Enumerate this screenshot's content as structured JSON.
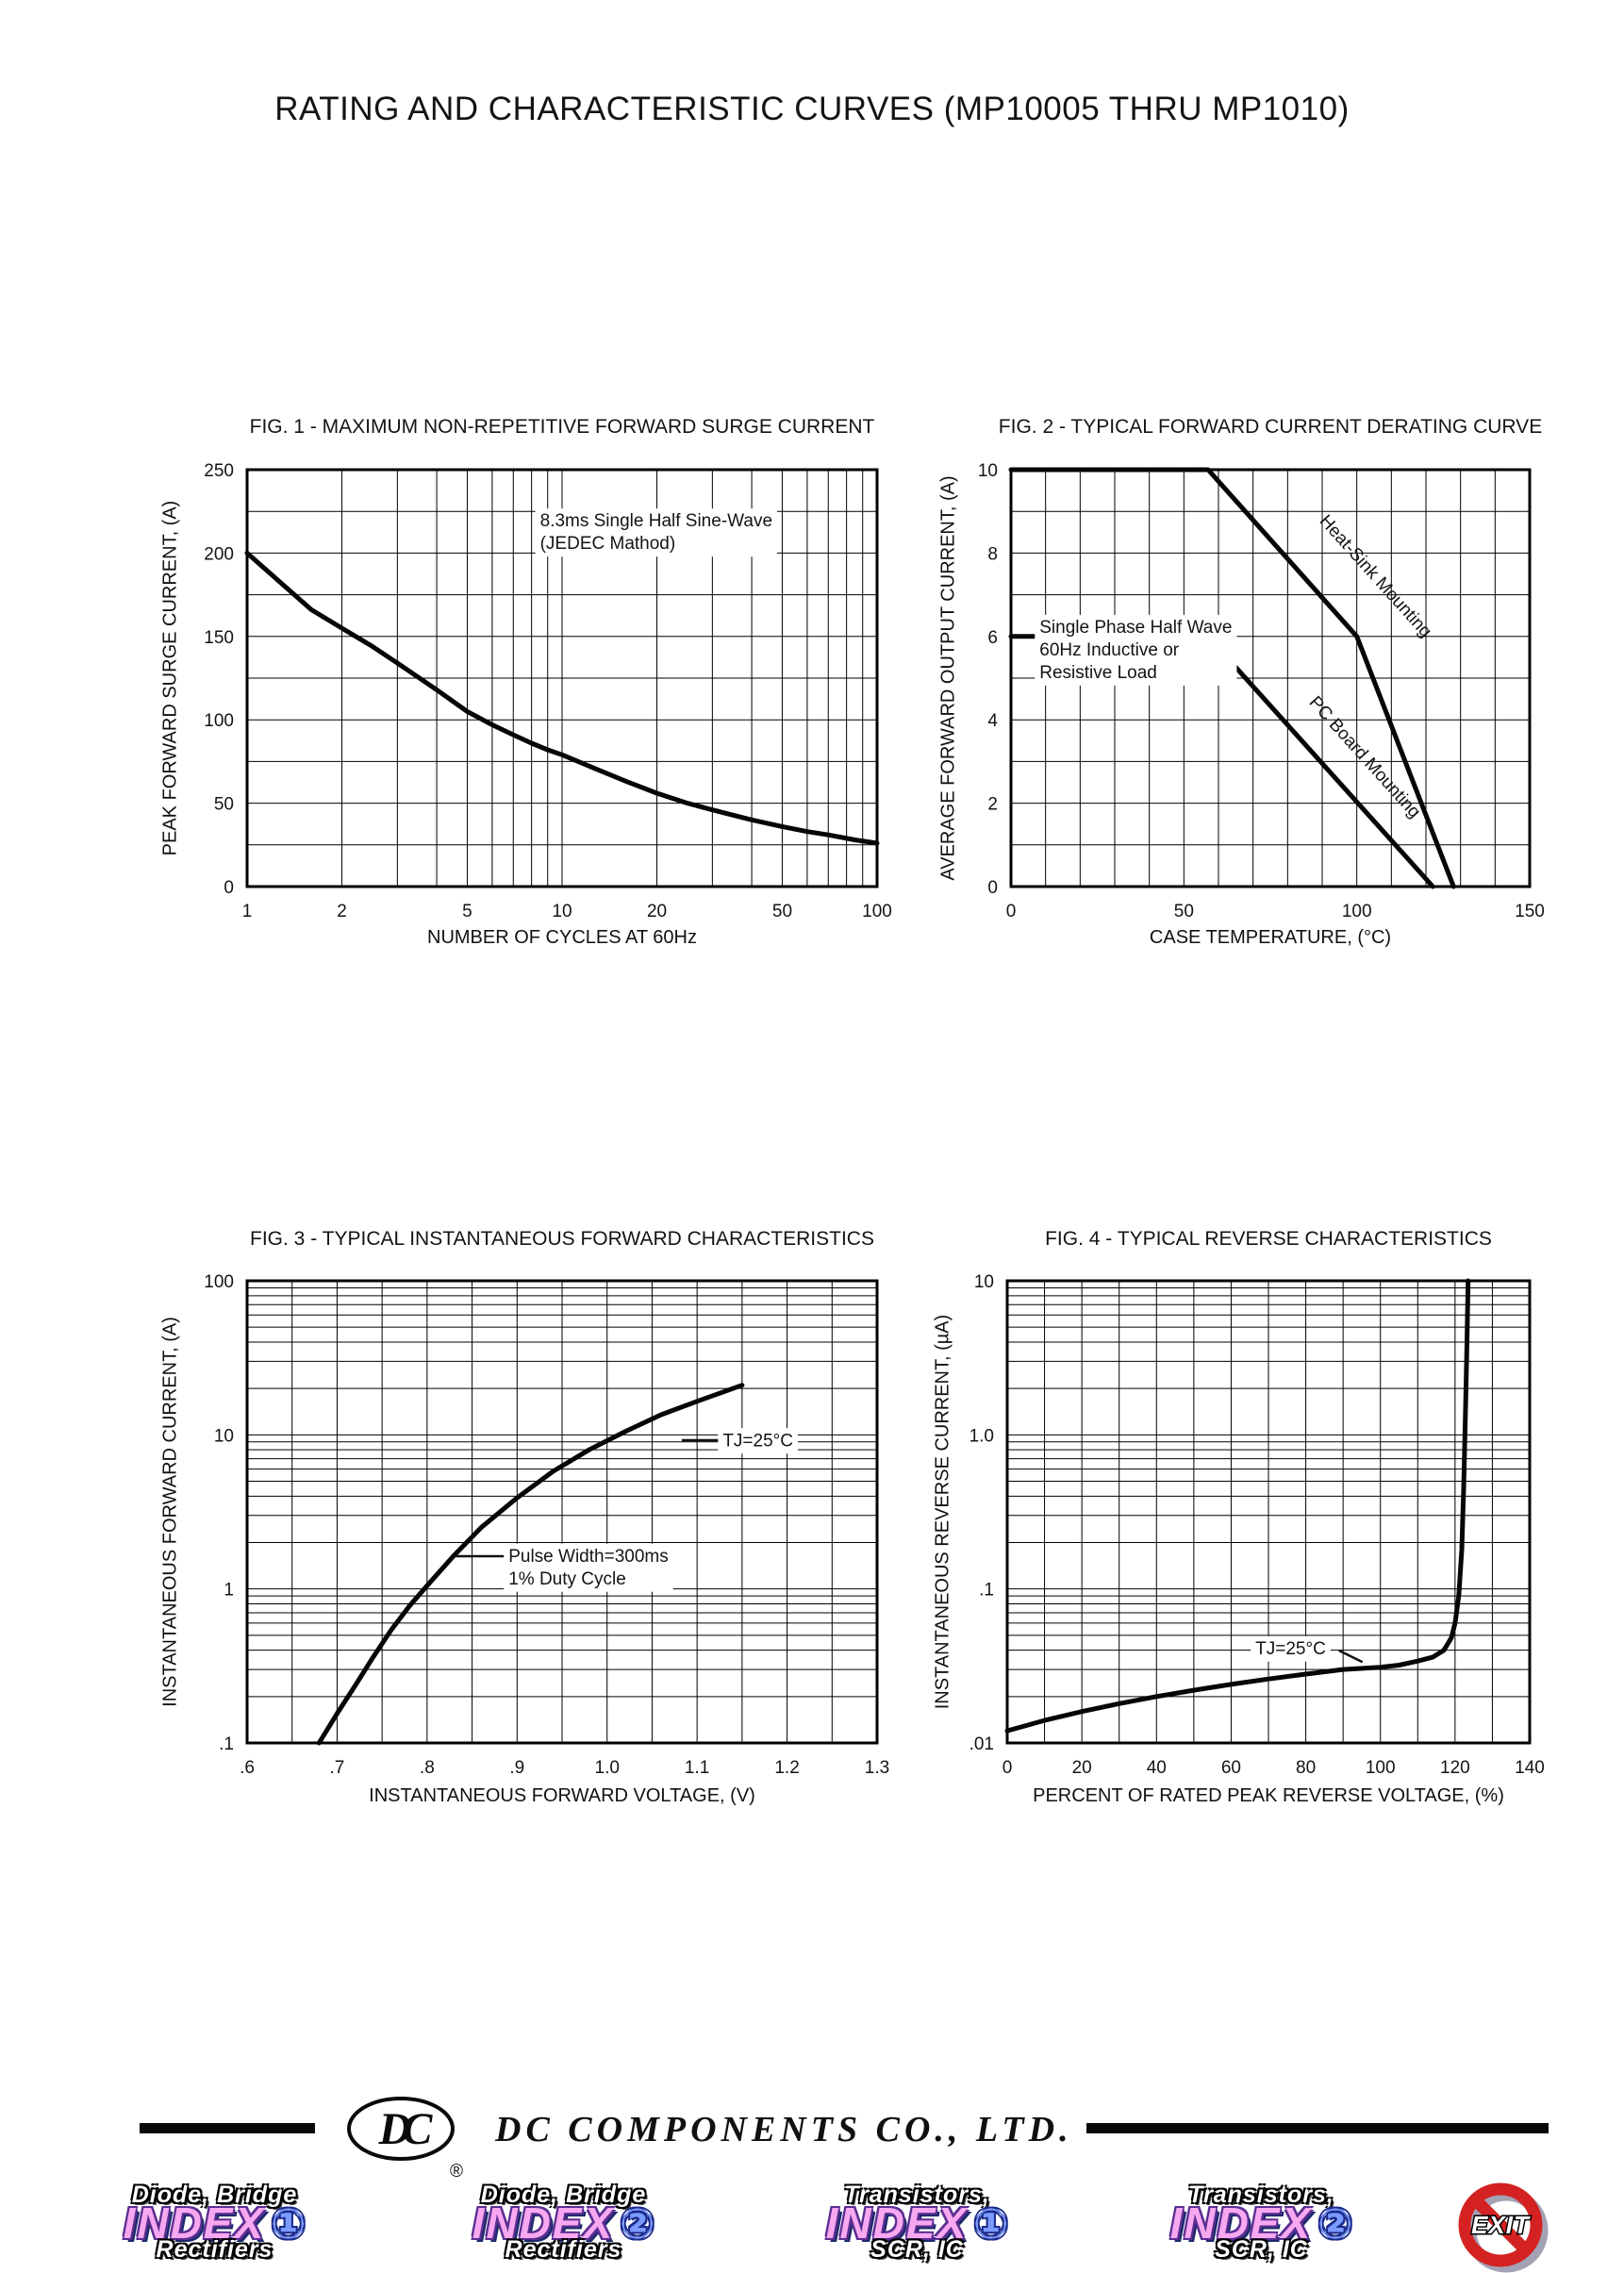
{
  "page": {
    "title": "RATING AND CHARACTERISTIC CURVES (MP10005 THRU MP1010)"
  },
  "chart_data": [
    {
      "id": "fig1",
      "type": "line",
      "title": "FIG. 1 - MAXIMUM NON-REPETITIVE FORWARD SURGE CURRENT",
      "xlabel": "NUMBER OF CYCLES AT 60Hz",
      "ylabel": "PEAK FORWARD SURGE CURRENT, (A)",
      "x": {
        "scale": "log",
        "min": 1,
        "max": 100,
        "tick_values": [
          1,
          2,
          5,
          10,
          20,
          50,
          100
        ],
        "tick_labels": [
          "1",
          "2",
          "5",
          "10",
          "20",
          "50",
          "100"
        ]
      },
      "y": {
        "scale": "linear",
        "min": 0,
        "max": 250,
        "grid_step": 25,
        "tick_values": [
          0,
          50,
          100,
          150,
          200,
          250
        ],
        "tick_labels": [
          "0",
          "50",
          "100",
          "150",
          "200",
          "250"
        ]
      },
      "series": [
        {
          "name": "surge-current",
          "points": [
            [
              1,
              200
            ],
            [
              1.3,
              181
            ],
            [
              1.6,
              166
            ],
            [
              2,
              155
            ],
            [
              2.5,
              144
            ],
            [
              3,
              134
            ],
            [
              4,
              118
            ],
            [
              5,
              105
            ],
            [
              6,
              97
            ],
            [
              7,
              91
            ],
            [
              8,
              86
            ],
            [
              9,
              82
            ],
            [
              10,
              79
            ],
            [
              13,
              70
            ],
            [
              16,
              63
            ],
            [
              20,
              56
            ],
            [
              25,
              50
            ],
            [
              30,
              46
            ],
            [
              40,
              40
            ],
            [
              50,
              36
            ],
            [
              60,
              33
            ],
            [
              70,
              31
            ],
            [
              85,
              28
            ],
            [
              100,
              26
            ]
          ]
        }
      ],
      "annotations": [
        {
          "lines": [
            "8.3ms Single Half Sine-Wave",
            "(JEDEC Mathod)"
          ],
          "fx": 0.465,
          "fy": 0.1,
          "anchor": "start",
          "bg": true
        }
      ]
    },
    {
      "id": "fig2",
      "type": "line",
      "title": "FIG. 2 - TYPICAL FORWARD CURRENT DERATING CURVE",
      "xlabel": "CASE TEMPERATURE, (°C)",
      "ylabel": "AVERAGE FORWARD OUTPUT CURRENT, (A)",
      "x": {
        "scale": "linear",
        "min": 0,
        "max": 150,
        "grid_step": 10,
        "tick_values": [
          0,
          50,
          100,
          150
        ],
        "tick_labels": [
          "0",
          "50",
          "100",
          "150"
        ]
      },
      "y": {
        "scale": "linear",
        "min": 0,
        "max": 10,
        "grid_step": 1,
        "tick_values": [
          0,
          2,
          4,
          6,
          8,
          10
        ],
        "tick_labels": [
          "0",
          "2",
          "4",
          "6",
          "8",
          "10"
        ]
      },
      "series": [
        {
          "name": "heat-sink-mounting",
          "points": [
            [
              0,
              10
            ],
            [
              57,
              10
            ],
            [
              100,
              6
            ],
            [
              128,
              0
            ]
          ]
        },
        {
          "name": "pc-board-mounting",
          "points": [
            [
              0,
              6
            ],
            [
              57,
              6
            ],
            [
              122,
              0
            ]
          ]
        }
      ],
      "annotations": [
        {
          "lines": [
            "Heat-Sink Mounting"
          ],
          "fx": 0.615,
          "fy": 0.1,
          "rotate": 48,
          "anchor": "start",
          "bg": false
        },
        {
          "lines": [
            "PC Board Mounting"
          ],
          "fx": 0.595,
          "fy": 0.535,
          "rotate": 48,
          "anchor": "start",
          "bg": false
        },
        {
          "lines": [
            "Single Phase Half Wave",
            "60Hz Inductive or",
            "Resistive Load"
          ],
          "fx": 0.055,
          "fy": 0.355,
          "anchor": "start",
          "bg": true
        }
      ]
    },
    {
      "id": "fig3",
      "type": "line",
      "title": "FIG. 3 - TYPICAL INSTANTANEOUS FORWARD CHARACTERISTICS",
      "xlabel": "INSTANTANEOUS FORWARD VOLTAGE, (V)",
      "ylabel": "INSTANTANEOUS FORWARD CURRENT, (A)",
      "x": {
        "scale": "linear",
        "min": 0.6,
        "max": 1.3,
        "grid_step": 0.05,
        "tick_values": [
          0.6,
          0.7,
          0.8,
          0.9,
          1.0,
          1.1,
          1.2,
          1.3
        ],
        "tick_labels": [
          ".6",
          ".7",
          ".8",
          ".9",
          "1.0",
          "1.1",
          "1.2",
          "1.3"
        ]
      },
      "y": {
        "scale": "log",
        "min": 0.1,
        "max": 100,
        "tick_values": [
          0.1,
          1,
          10,
          100
        ],
        "tick_labels": [
          ".1",
          "1",
          "10",
          "100"
        ]
      },
      "series": [
        {
          "name": "forward-characteristic",
          "points": [
            [
              0.68,
              0.1
            ],
            [
              0.7,
              0.155
            ],
            [
              0.72,
              0.235
            ],
            [
              0.74,
              0.36
            ],
            [
              0.76,
              0.54
            ],
            [
              0.78,
              0.77
            ],
            [
              0.8,
              1.05
            ],
            [
              0.83,
              1.65
            ],
            [
              0.86,
              2.5
            ],
            [
              0.9,
              3.9
            ],
            [
              0.94,
              5.8
            ],
            [
              0.98,
              8.0
            ],
            [
              1.02,
              10.5
            ],
            [
              1.06,
              13.5
            ],
            [
              1.1,
              16.5
            ],
            [
              1.15,
              21
            ]
          ]
        }
      ],
      "annotations": [
        {
          "lines": [
            "TJ=25°C"
          ],
          "fx": 0.755,
          "fy": 0.325,
          "anchor": "start",
          "bg": true,
          "leader": [
            0.69,
            0.345,
            0.75,
            0.345
          ]
        },
        {
          "lines": [
            "Pulse Width=300ms",
            "1% Duty Cycle"
          ],
          "fx": 0.415,
          "fy": 0.575,
          "anchor": "start",
          "bg": true,
          "leader": [
            0.33,
            0.596,
            0.41,
            0.596
          ]
        }
      ]
    },
    {
      "id": "fig4",
      "type": "line",
      "title": "FIG. 4 - TYPICAL REVERSE CHARACTERISTICS",
      "xlabel": "PERCENT OF RATED PEAK REVERSE VOLTAGE, (%)",
      "ylabel": "INSTANTANEOUS REVERSE CURRENT, (µA)",
      "x": {
        "scale": "linear",
        "min": 0,
        "max": 140,
        "grid_step": 10,
        "tick_values": [
          0,
          20,
          40,
          60,
          80,
          100,
          120,
          140
        ],
        "tick_labels": [
          "0",
          "20",
          "40",
          "60",
          "80",
          "100",
          "120",
          "140"
        ]
      },
      "y": {
        "scale": "log",
        "min": 0.01,
        "max": 10,
        "tick_values": [
          0.01,
          0.1,
          1.0,
          10
        ],
        "tick_labels": [
          ".01",
          ".1",
          "1.0",
          "10"
        ]
      },
      "series": [
        {
          "name": "reverse-characteristic",
          "points": [
            [
              0,
              0.012
            ],
            [
              10,
              0.014
            ],
            [
              20,
              0.016
            ],
            [
              30,
              0.018
            ],
            [
              40,
              0.02
            ],
            [
              50,
              0.022
            ],
            [
              60,
              0.024
            ],
            [
              70,
              0.026
            ],
            [
              80,
              0.028
            ],
            [
              90,
              0.03
            ],
            [
              100,
              0.031
            ],
            [
              105,
              0.032
            ],
            [
              110,
              0.034
            ],
            [
              114,
              0.036
            ],
            [
              117,
              0.04
            ],
            [
              119,
              0.048
            ],
            [
              120,
              0.06
            ],
            [
              121,
              0.09
            ],
            [
              121.8,
              0.18
            ],
            [
              122.3,
              0.45
            ],
            [
              122.8,
              1.4
            ],
            [
              123.2,
              4.0
            ],
            [
              123.5,
              10
            ]
          ]
        }
      ],
      "annotations": [
        {
          "lines": [
            "TJ=25°C"
          ],
          "fx": 0.475,
          "fy": 0.775,
          "anchor": "start",
          "bg": true,
          "leader": [
            0.635,
            0.8,
            0.68,
            0.825
          ]
        }
      ]
    }
  ],
  "footer": {
    "company": "DC COMPONENTS CO., LTD.",
    "logo_monogram": "DC",
    "registered_mark": "®",
    "nav_buttons": [
      {
        "top": "Diode, Bridge",
        "index": "INDEX",
        "number": "①",
        "bottom": "Rectifiers"
      },
      {
        "top": "Diode, Bridge",
        "index": "INDEX",
        "number": "②",
        "bottom": "Rectifiers"
      },
      {
        "top": "Transistors,",
        "index": "INDEX",
        "number": "①",
        "bottom": "SCR, IC"
      },
      {
        "top": "Transistors,",
        "index": "INDEX",
        "number": "②",
        "bottom": "SCR, IC"
      },
      {
        "label": "EXIT"
      }
    ]
  },
  "colors": {
    "curve": "#060606",
    "exit_red": "#d42222",
    "index_pink": "#f7a8f0",
    "index_blue": "#7b9bff"
  }
}
